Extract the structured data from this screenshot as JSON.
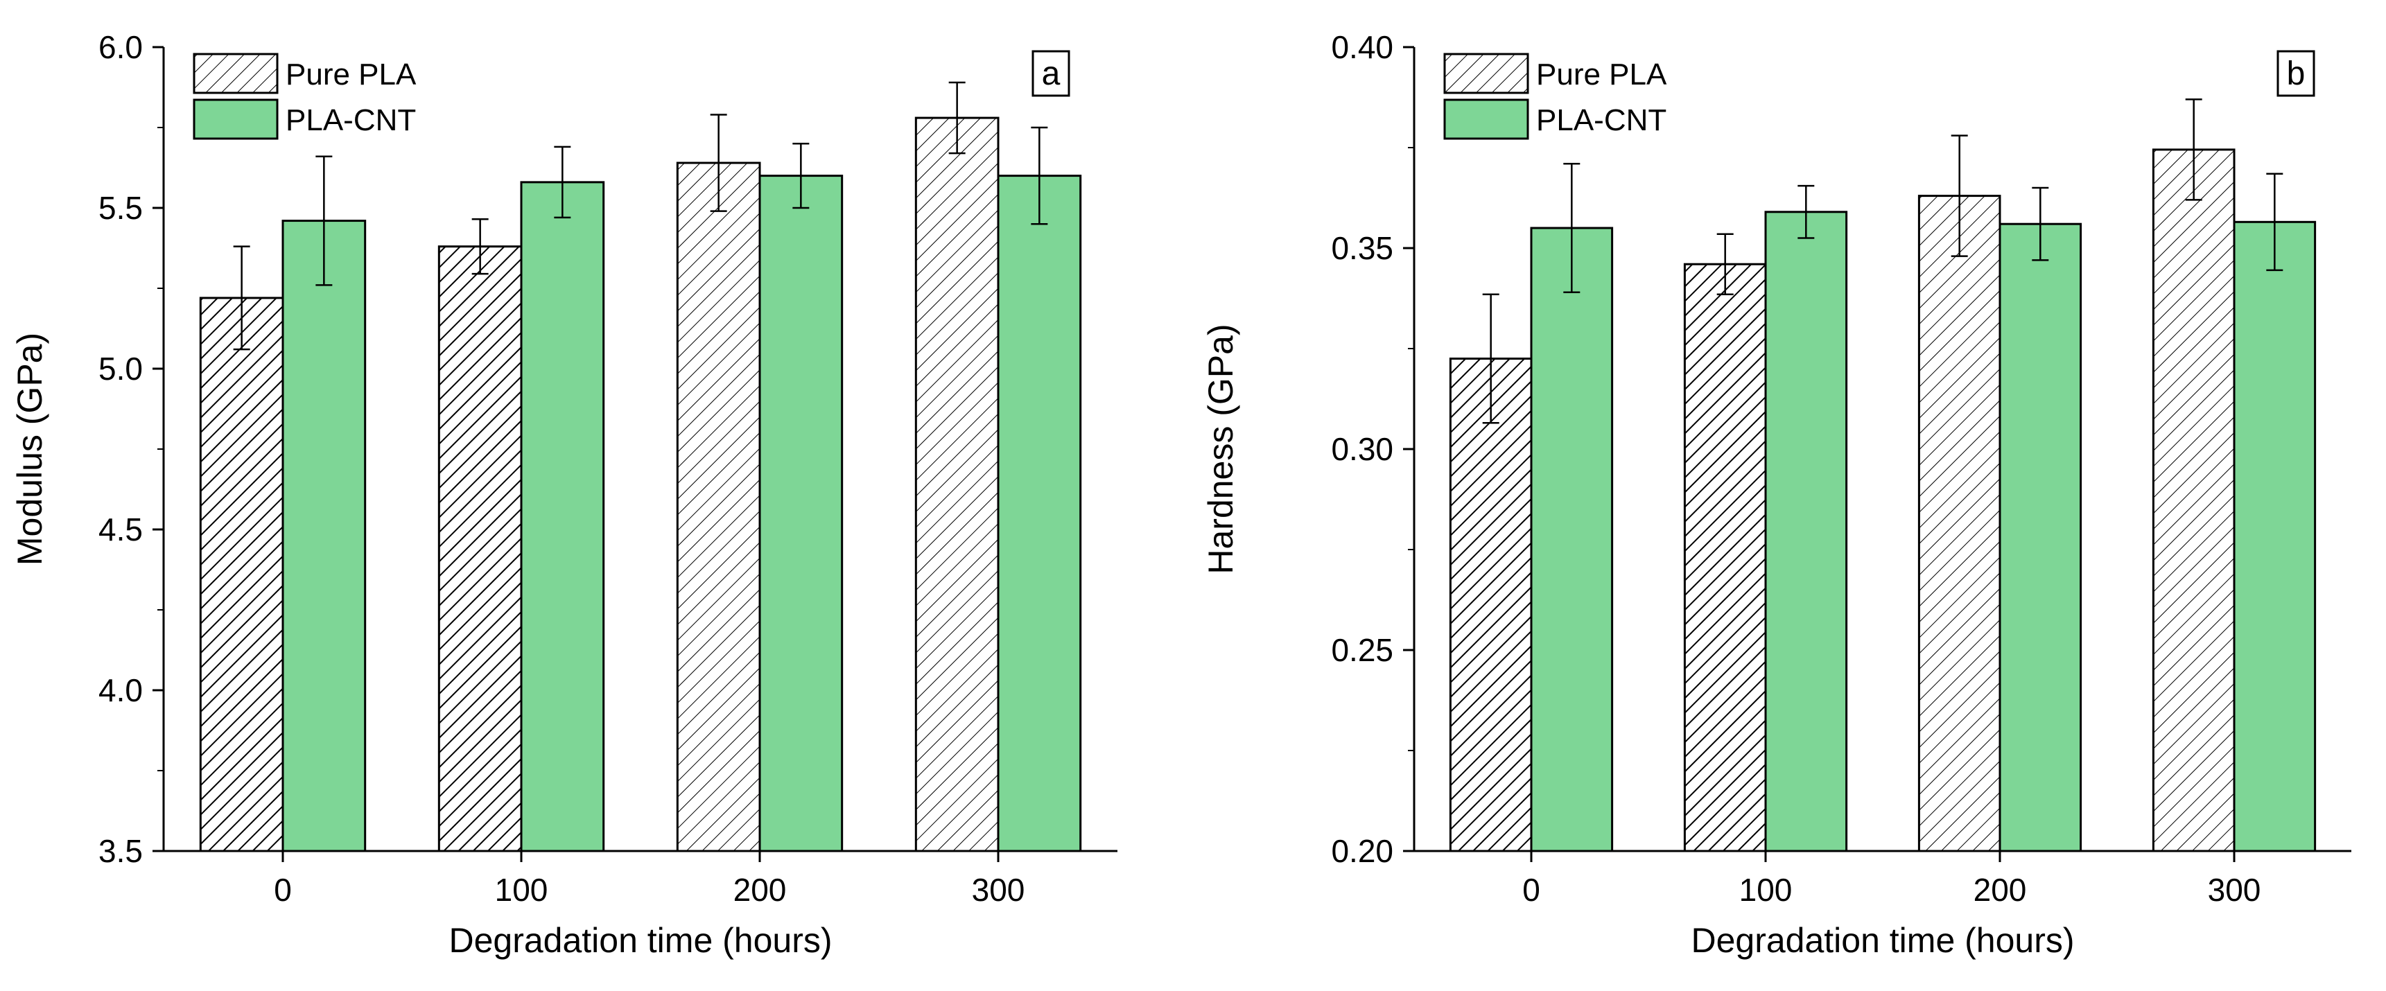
{
  "figure": {
    "background": "#ffffff"
  },
  "style": {
    "pla_cnt_color": "#7ed696",
    "hatch_fill": "#ffffff",
    "outline": "#000000"
  },
  "chart_data": [
    {
      "type": "bar",
      "panel_label": "a",
      "categories": [
        "0",
        "100",
        "200",
        "300"
      ],
      "xlabel": "Degradation time (hours)",
      "ylabel": "Modulus (GPa)",
      "ylim": [
        3.5,
        6.0
      ],
      "yticks": [
        "3.5",
        "4.0",
        "4.5",
        "5.0",
        "5.5",
        "6.0"
      ],
      "grid": false,
      "legend_position": "top-left",
      "series": [
        {
          "name": "Pure PLA",
          "fill": "hatch",
          "hatch_density": [
            "dense",
            "dense",
            "sparse",
            "sparse"
          ],
          "values": [
            5.22,
            5.38,
            5.64,
            5.78
          ],
          "errors": [
            0.16,
            0.085,
            0.15,
            0.11
          ]
        },
        {
          "name": "PLA-CNT",
          "fill": "#7ed696",
          "values": [
            5.46,
            5.58,
            5.6,
            5.6
          ],
          "errors": [
            0.2,
            0.11,
            0.1,
            0.15
          ]
        }
      ]
    },
    {
      "type": "bar",
      "panel_label": "b",
      "categories": [
        "0",
        "100",
        "200",
        "300"
      ],
      "xlabel": "Degradation time (hours)",
      "ylabel": "Hardness (GPa)",
      "ylim": [
        0.2,
        0.4
      ],
      "yticks": [
        "0.20",
        "0.25",
        "0.30",
        "0.35",
        "0.40"
      ],
      "grid": false,
      "legend_position": "top-left",
      "series": [
        {
          "name": "Pure PLA",
          "fill": "hatch",
          "hatch_density": [
            "dense",
            "dense",
            "sparse",
            "sparse"
          ],
          "values": [
            0.3225,
            0.346,
            0.363,
            0.3745
          ],
          "errors": [
            0.016,
            0.0075,
            0.015,
            0.0125
          ]
        },
        {
          "name": "PLA-CNT",
          "fill": "#7ed696",
          "values": [
            0.355,
            0.359,
            0.356,
            0.3565
          ],
          "errors": [
            0.016,
            0.0065,
            0.009,
            0.012
          ]
        }
      ]
    }
  ]
}
